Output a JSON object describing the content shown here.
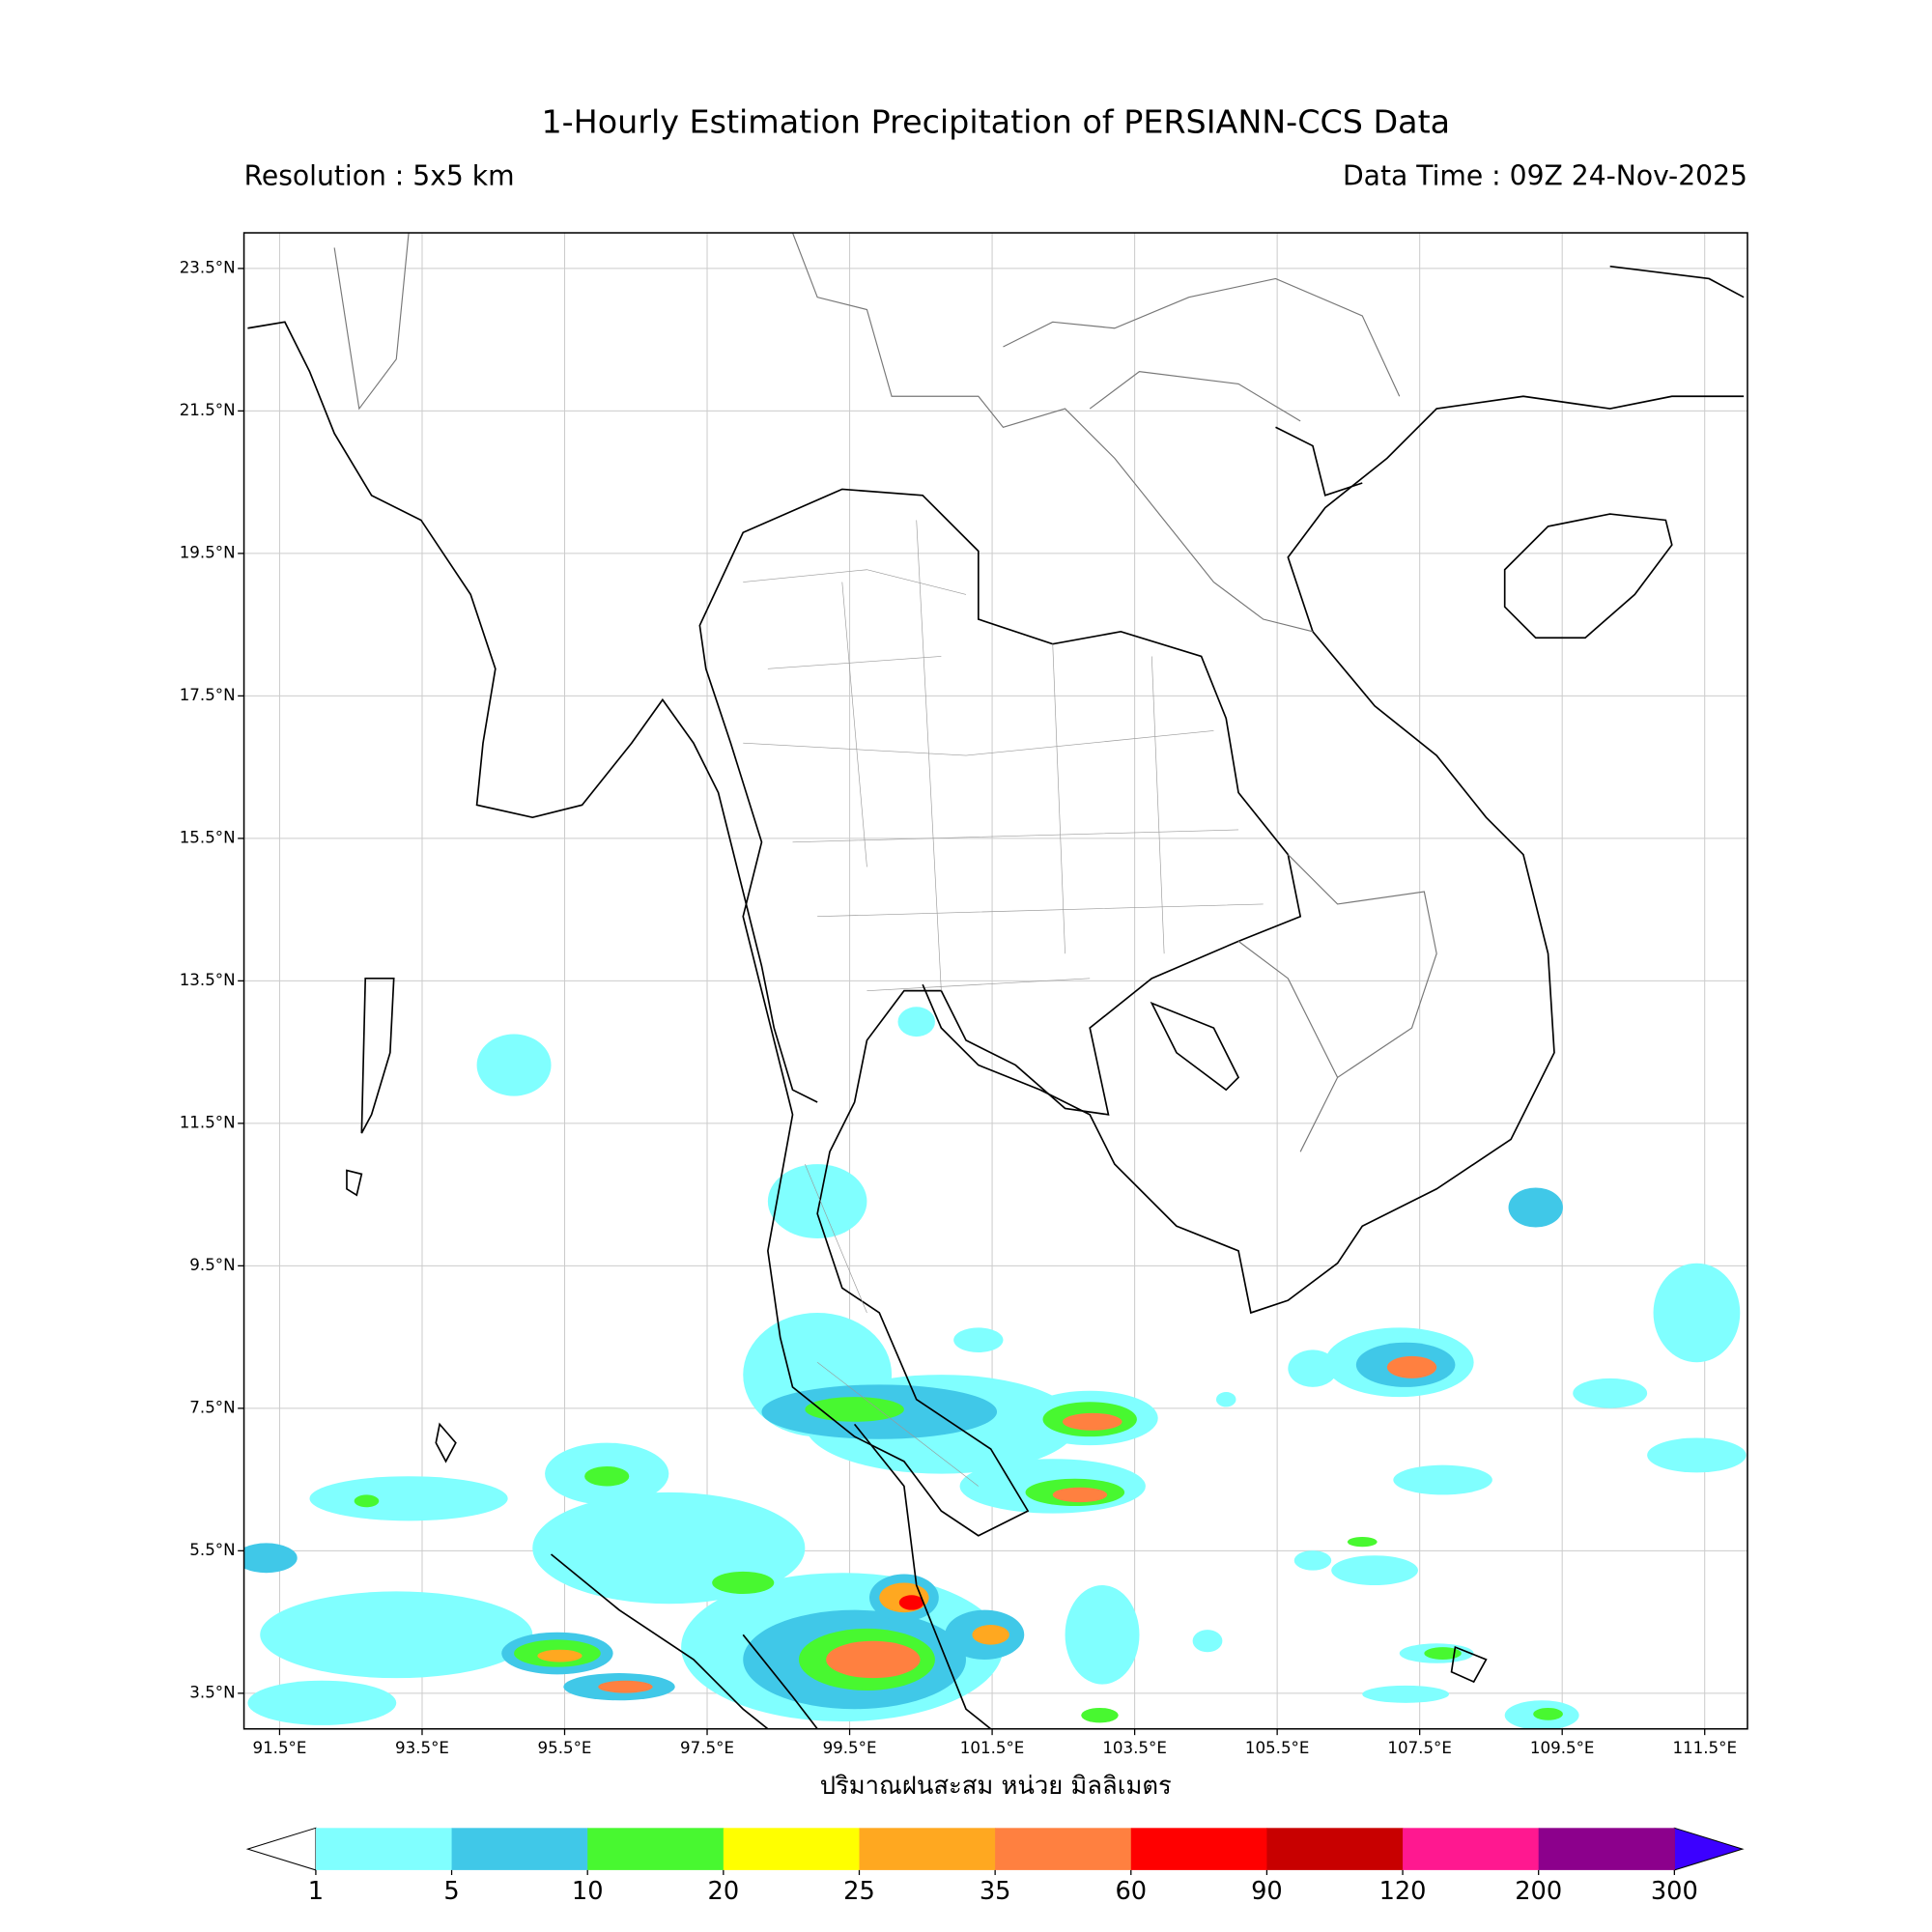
{
  "title": "1-Hourly Estimation Precipitation of PERSIANN-CCS Data",
  "resolution": "Resolution : 5x5 km",
  "data_time": "Data Time : 09Z 24-Nov-2025",
  "map": {
    "lonlim": [
      91,
      112.1
    ],
    "latlim": [
      3,
      24
    ],
    "lat_ticks": [
      {
        "value": 23.5,
        "label": "23.5°N"
      },
      {
        "value": 21.5,
        "label": "21.5°N"
      },
      {
        "value": 19.5,
        "label": "19.5°N"
      },
      {
        "value": 17.5,
        "label": "17.5°N"
      },
      {
        "value": 15.5,
        "label": "15.5°N"
      },
      {
        "value": 13.5,
        "label": "13.5°N"
      },
      {
        "value": 11.5,
        "label": "11.5°N"
      },
      {
        "value": 9.5,
        "label": "9.5°N"
      },
      {
        "value": 7.5,
        "label": "7.5°N"
      },
      {
        "value": 5.5,
        "label": "5.5°N"
      },
      {
        "value": 3.5,
        "label": "3.5°N"
      }
    ],
    "lon_ticks": [
      {
        "value": 91.5,
        "label": "91.5°E"
      },
      {
        "value": 93.5,
        "label": "93.5°E"
      },
      {
        "value": 95.5,
        "label": "95.5°E"
      },
      {
        "value": 97.5,
        "label": "97.5°E"
      },
      {
        "value": 99.5,
        "label": "99.5°E"
      },
      {
        "value": 101.5,
        "label": "101.5°E"
      },
      {
        "value": 103.5,
        "label": "103.5°E"
      },
      {
        "value": 105.5,
        "label": "105.5°E"
      },
      {
        "value": 107.5,
        "label": "107.5°E"
      },
      {
        "value": 109.5,
        "label": "109.5°E"
      },
      {
        "value": 111.5,
        "label": "111.5°E"
      }
    ],
    "grid": true
  },
  "colorbar": {
    "label": "ปริมาณฝนสะสม หน่วย มิลลิเมตร",
    "levels": [
      1,
      5,
      10,
      20,
      25,
      35,
      60,
      90,
      120,
      200,
      300
    ],
    "colors": [
      "#80ffff",
      "#40c8e8",
      "#48f830",
      "#ffff00",
      "#ffa820",
      "#ff8040",
      "#ff0000",
      "#c80000",
      "#ff1890",
      "#8c008c"
    ],
    "under_color": "#ffffff",
    "over_color": "#3c00ff"
  }
}
